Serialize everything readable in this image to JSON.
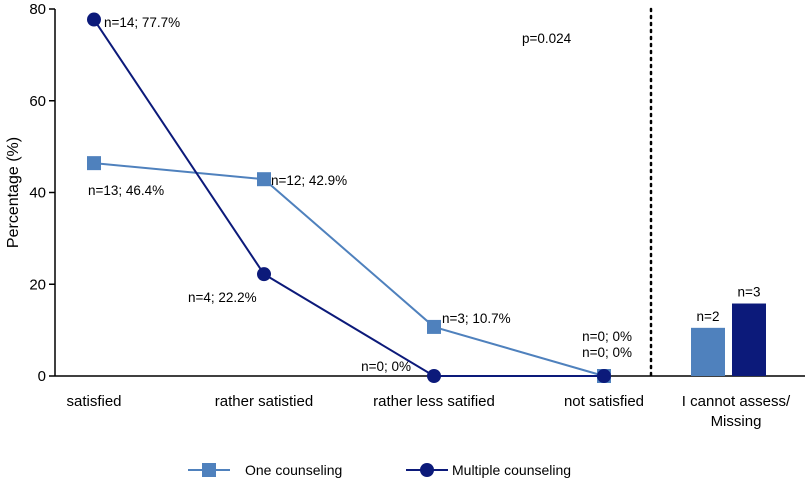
{
  "chart_data": {
    "type": "line",
    "title": "",
    "ylabel": "Percentage (%)",
    "xlabel": "",
    "ylim": [
      0,
      80
    ],
    "yticks": [
      "0",
      "20",
      "40",
      "60",
      "80"
    ],
    "categories": [
      "satisfied",
      "rather satistied",
      "rather less satified",
      "not satisfied"
    ],
    "series": [
      {
        "name": "One counseling",
        "marker": "square",
        "color": "#4F81BD",
        "values": [
          46.4,
          42.9,
          10.7,
          0
        ],
        "labels": [
          "n=13; 46.4%",
          "n=12; 42.9%",
          "n=3; 10.7%",
          "n=0; 0%"
        ]
      },
      {
        "name": "Multiple counseling",
        "marker": "circle",
        "color": "#0C1A7A",
        "values": [
          77.7,
          22.2,
          0,
          0
        ],
        "labels": [
          "n=14; 77.7%",
          "n=4; 22.2%",
          "n=0; 0%",
          "n=0; 0%"
        ]
      }
    ],
    "annotation": "p=0.024",
    "missing_group": {
      "category": "I cannot assess/ Missing",
      "bars": [
        {
          "series": "One counseling",
          "value": 10.5,
          "label": "n=2"
        },
        {
          "series": "Multiple counseling",
          "value": 15.8,
          "label": "n=3"
        }
      ]
    },
    "legend": {
      "position": "bottom",
      "items": [
        "One counseling",
        "Multiple counseling"
      ]
    }
  }
}
